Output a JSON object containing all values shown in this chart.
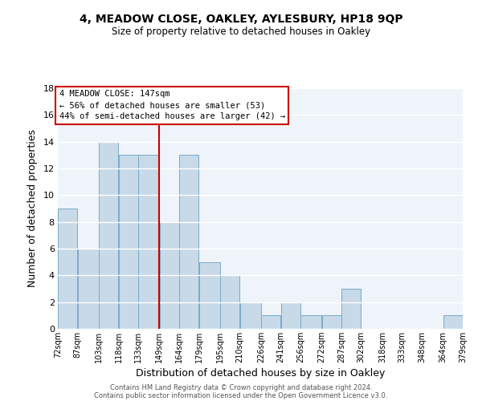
{
  "title": "4, MEADOW CLOSE, OAKLEY, AYLESBURY, HP18 9QP",
  "subtitle": "Size of property relative to detached houses in Oakley",
  "xlabel": "Distribution of detached houses by size in Oakley",
  "ylabel": "Number of detached properties",
  "bar_left_edges": [
    72,
    87,
    103,
    118,
    133,
    149,
    164,
    179,
    195,
    210,
    226,
    241,
    256,
    272,
    287,
    302,
    318,
    333,
    348,
    364
  ],
  "bar_widths": [
    15,
    16,
    15,
    15,
    16,
    15,
    15,
    16,
    15,
    16,
    15,
    15,
    16,
    15,
    15,
    16,
    15,
    15,
    16,
    15
  ],
  "bar_heights": [
    9,
    6,
    14,
    13,
    13,
    8,
    13,
    5,
    4,
    2,
    1,
    2,
    1,
    1,
    3,
    0,
    0,
    0,
    0,
    1
  ],
  "bar_color": "#c8d9e8",
  "bar_edgecolor": "#7aaac8",
  "vline_x": 149,
  "vline_color": "#cc0000",
  "ylim": [
    0,
    18
  ],
  "yticks": [
    0,
    2,
    4,
    6,
    8,
    10,
    12,
    14,
    16,
    18
  ],
  "xtick_labels": [
    "72sqm",
    "87sqm",
    "103sqm",
    "118sqm",
    "133sqm",
    "149sqm",
    "164sqm",
    "179sqm",
    "195sqm",
    "210sqm",
    "226sqm",
    "241sqm",
    "256sqm",
    "272sqm",
    "287sqm",
    "302sqm",
    "318sqm",
    "333sqm",
    "348sqm",
    "364sqm",
    "379sqm"
  ],
  "annotation_title": "4 MEADOW CLOSE: 147sqm",
  "annotation_line1": "← 56% of detached houses are smaller (53)",
  "annotation_line2": "44% of semi-detached houses are larger (42) →",
  "annotation_box_edgecolor": "#cc0000",
  "footer_line1": "Contains HM Land Registry data © Crown copyright and database right 2024.",
  "footer_line2": "Contains public sector information licensed under the Open Government Licence v3.0.",
  "background_color": "#ffffff",
  "plot_bg_color": "#eef4fa",
  "grid_color": "#ffffff"
}
